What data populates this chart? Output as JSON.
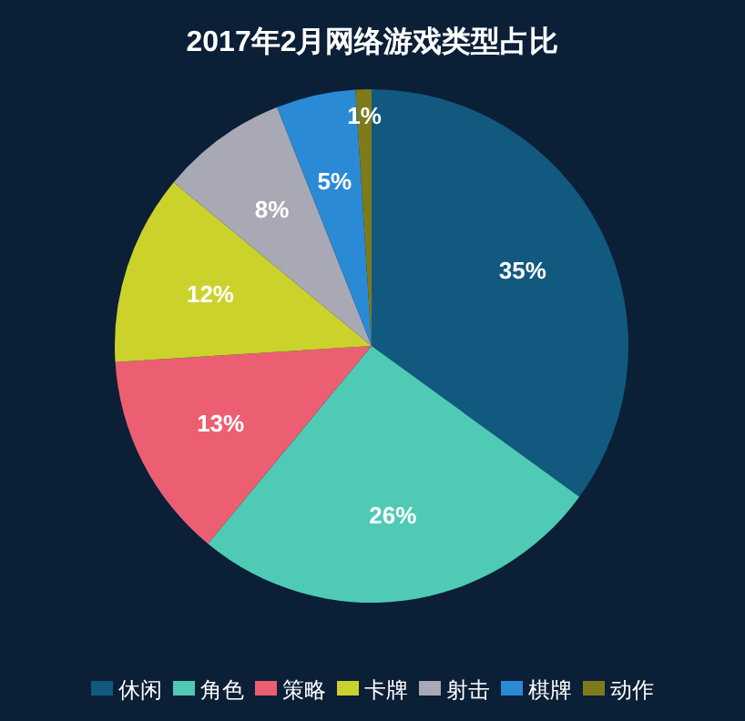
{
  "chart_data": {
    "type": "pie",
    "title": "2017年2月网络游戏类型占比",
    "categories": [
      "休闲",
      "角色",
      "策略",
      "卡牌",
      "射击",
      "棋牌",
      "动作"
    ],
    "values": [
      35,
      26,
      13,
      12,
      8,
      5,
      1
    ],
    "colors": [
      "#11597e",
      "#4fcab5",
      "#ec5f72",
      "#cbd22c",
      "#a8a9b5",
      "#2a8ad6",
      "#7f7b1d"
    ],
    "value_labels": [
      "35%",
      "26%",
      "13%",
      "12%",
      "8%",
      "5%",
      "1%"
    ],
    "legend": "bottom"
  }
}
